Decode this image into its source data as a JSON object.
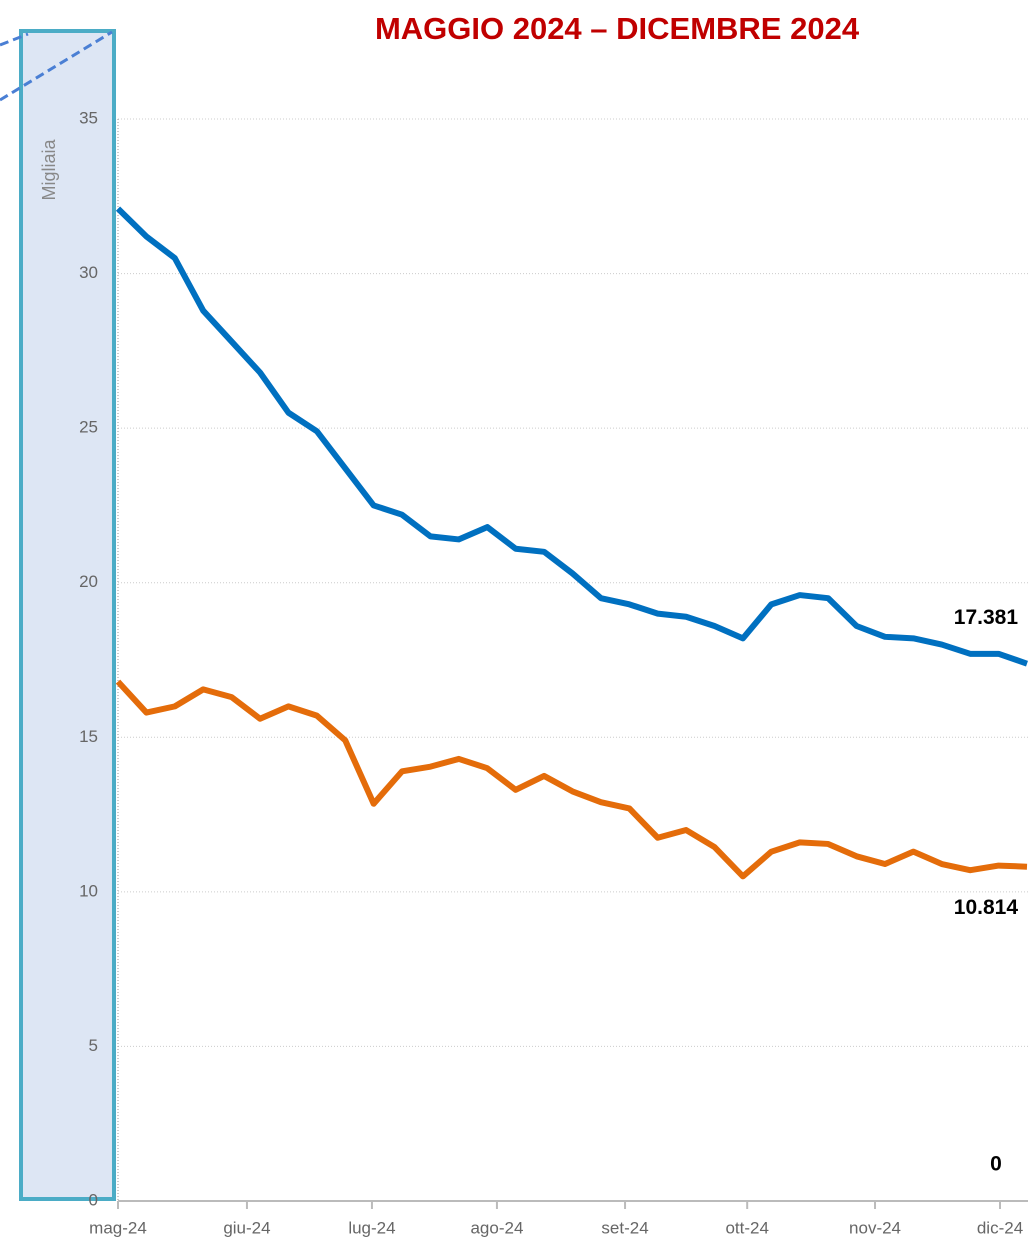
{
  "chart_data": {
    "type": "line",
    "title": "MAGGIO 2024 – DICEMBRE 2024",
    "y_label": "Migliaia",
    "x": [
      0,
      1,
      2,
      3,
      4,
      5,
      6,
      7,
      8,
      9,
      10,
      11,
      12,
      13,
      14,
      15,
      16,
      17,
      18,
      19,
      20,
      21,
      22,
      23,
      24,
      25,
      26,
      27,
      28,
      29,
      30,
      31,
      32
    ],
    "xlim": [
      0,
      32
    ],
    "xticks": [
      {
        "value": 0,
        "label": "mag-24"
      },
      {
        "value": 4.54,
        "label": "giu-24"
      },
      {
        "value": 8.94,
        "label": "lug-24"
      },
      {
        "value": 13.34,
        "label": "ago-24"
      },
      {
        "value": 17.85,
        "label": "set-24"
      },
      {
        "value": 22.15,
        "label": "ott-24"
      },
      {
        "value": 26.65,
        "label": "nov-24"
      },
      {
        "value": 31.05,
        "label": "dic-24"
      }
    ],
    "ylim": [
      0,
      35
    ],
    "yticks": [
      0,
      5,
      10,
      15,
      20,
      25,
      30,
      35
    ],
    "grid": true,
    "series": [
      {
        "color": "#0070c0",
        "end_label": "17.381",
        "values": [
          32.1,
          31.2,
          30.5,
          28.8,
          27.8,
          26.8,
          25.5,
          24.9,
          23.7,
          22.5,
          22.2,
          21.5,
          21.4,
          21.8,
          21.1,
          21.0,
          20.3,
          19.5,
          19.3,
          19.0,
          18.9,
          18.6,
          18.2,
          19.3,
          19.6,
          19.5,
          18.6,
          18.25,
          18.2,
          18.0,
          17.7,
          17.7,
          17.381
        ]
      },
      {
        "color": "#e46c0a",
        "end_label": "10.814",
        "values": [
          16.8,
          15.8,
          16.0,
          16.55,
          16.3,
          15.6,
          16.0,
          15.7,
          14.9,
          12.85,
          13.9,
          14.05,
          14.3,
          14.0,
          13.3,
          13.75,
          13.25,
          12.9,
          12.7,
          11.75,
          12.0,
          11.45,
          10.5,
          11.3,
          11.6,
          11.55,
          11.15,
          10.9,
          11.3,
          10.9,
          10.7,
          10.85,
          10.814
        ]
      }
    ],
    "annotation": "0"
  }
}
